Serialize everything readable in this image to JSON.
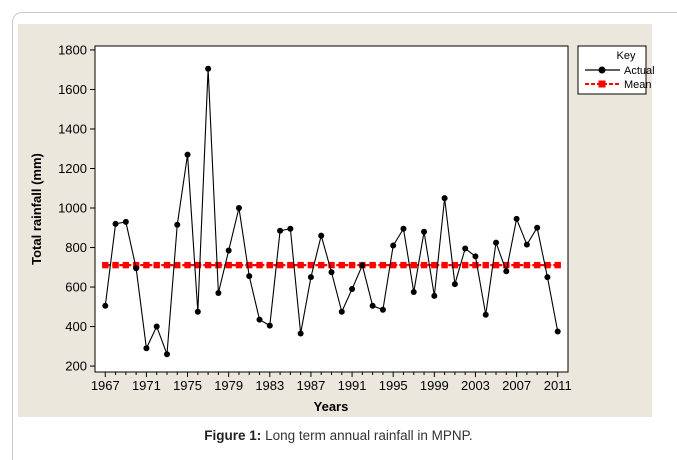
{
  "caption": {
    "label": "Figure 1:",
    "text": " Long term annual rainfall in MPNP."
  },
  "chart_data": {
    "type": "line",
    "xlabel": "Years",
    "ylabel": "Total rainfall (mm)",
    "xlim": [
      1966,
      2012
    ],
    "ylim": [
      170,
      1820
    ],
    "x_ticks": [
      1967,
      1971,
      1975,
      1979,
      1983,
      1987,
      1991,
      1995,
      1999,
      2003,
      2007,
      2011
    ],
    "y_ticks": [
      200,
      400,
      600,
      800,
      1000,
      1200,
      1400,
      1600,
      1800
    ],
    "legend": {
      "title": "Key",
      "placement": "right",
      "entries": [
        "Actual",
        "Mean"
      ]
    },
    "grid": false,
    "series": [
      {
        "name": "Actual",
        "color": "#000000",
        "marker": "circle",
        "x": [
          1967,
          1968,
          1969,
          1970,
          1971,
          1972,
          1973,
          1974,
          1975,
          1976,
          1977,
          1978,
          1979,
          1980,
          1981,
          1982,
          1983,
          1984,
          1985,
          1986,
          1987,
          1988,
          1989,
          1990,
          1991,
          1992,
          1993,
          1994,
          1995,
          1996,
          1997,
          1998,
          1999,
          2000,
          2001,
          2002,
          2003,
          2004,
          2005,
          2006,
          2007,
          2008,
          2009,
          2010,
          2011
        ],
        "y": [
          505,
          920,
          930,
          695,
          290,
          400,
          260,
          915,
          1270,
          475,
          1705,
          570,
          785,
          1000,
          655,
          435,
          405,
          885,
          895,
          365,
          650,
          860,
          675,
          475,
          590,
          710,
          505,
          485,
          810,
          895,
          575,
          880,
          555,
          1050,
          615,
          795,
          755,
          460,
          825,
          680,
          945,
          815,
          900,
          650,
          375
        ]
      },
      {
        "name": "Mean",
        "color": "#ff0000",
        "marker": "square",
        "x": [
          1967,
          1968,
          1969,
          1970,
          1971,
          1972,
          1973,
          1974,
          1975,
          1976,
          1977,
          1978,
          1979,
          1980,
          1981,
          1982,
          1983,
          1984,
          1985,
          1986,
          1987,
          1988,
          1989,
          1990,
          1991,
          1992,
          1993,
          1994,
          1995,
          1996,
          1997,
          1998,
          1999,
          2000,
          2001,
          2002,
          2003,
          2004,
          2005,
          2006,
          2007,
          2008,
          2009,
          2010,
          2011
        ],
        "y": [
          711,
          711,
          711,
          711,
          711,
          711,
          711,
          711,
          711,
          711,
          711,
          711,
          711,
          711,
          711,
          711,
          711,
          711,
          711,
          711,
          711,
          711,
          711,
          711,
          711,
          711,
          711,
          711,
          711,
          711,
          711,
          711,
          711,
          711,
          711,
          711,
          711,
          711,
          711,
          711,
          711,
          711,
          711,
          711,
          711
        ]
      }
    ]
  }
}
